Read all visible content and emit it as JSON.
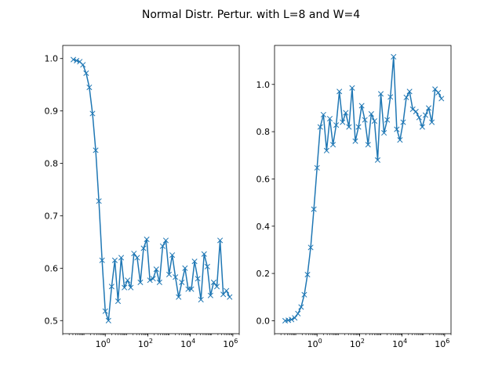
{
  "chart_data": {
    "title": "Normal Distr. Pertur. with L=8 and W=4",
    "line_color": "#1f77b4",
    "axes_color": "#000000",
    "background": "#ffffff",
    "panels": [
      {
        "type": "line",
        "marker": "x",
        "xscale": "log",
        "xlim": [
          0.01,
          2000000
        ],
        "ylim": [
          0.475,
          1.025
        ],
        "xticks": [
          {
            "value": 1,
            "base": "10",
            "exp": "0"
          },
          {
            "value": 100,
            "base": "10",
            "exp": "2"
          },
          {
            "value": 10000,
            "base": "10",
            "exp": "4"
          },
          {
            "value": 1000000,
            "base": "10",
            "exp": "6"
          }
        ],
        "yticks": [
          {
            "value": 0.5,
            "label": "0.5"
          },
          {
            "value": 0.6,
            "label": "0.6"
          },
          {
            "value": 0.7,
            "label": "0.7"
          },
          {
            "value": 0.8,
            "label": "0.8"
          },
          {
            "value": 0.9,
            "label": "0.9"
          },
          {
            "value": 1.0,
            "label": "1.0"
          }
        ],
        "x": [
          0.0316,
          0.0447,
          0.0631,
          0.0891,
          0.1259,
          0.1778,
          0.2512,
          0.3548,
          0.5012,
          0.7079,
          1.0,
          1.4125,
          1.9953,
          2.8184,
          3.9811,
          5.6234,
          7.9433,
          11.22,
          15.85,
          22.39,
          31.62,
          44.67,
          63.1,
          89.13,
          125.9,
          177.8,
          251.2,
          354.8,
          501.2,
          707.9,
          1000,
          1413,
          1995,
          2818,
          3981,
          5623,
          7943,
          11220,
          15850,
          22390,
          31620,
          44670,
          63100,
          89130,
          125900,
          177800,
          251200,
          354800,
          501200,
          707900
        ],
        "y": [
          0.998,
          0.996,
          0.994,
          0.988,
          0.972,
          0.945,
          0.895,
          0.825,
          0.728,
          0.615,
          0.518,
          0.5,
          0.565,
          0.615,
          0.537,
          0.62,
          0.563,
          0.577,
          0.563,
          0.628,
          0.62,
          0.573,
          0.638,
          0.655,
          0.577,
          0.58,
          0.598,
          0.573,
          0.642,
          0.653,
          0.588,
          0.625,
          0.583,
          0.545,
          0.573,
          0.6,
          0.56,
          0.56,
          0.613,
          0.58,
          0.54,
          0.627,
          0.603,
          0.548,
          0.573,
          0.565,
          0.653,
          0.55,
          0.557,
          0.545
        ]
      },
      {
        "type": "line",
        "marker": "x",
        "xscale": "log",
        "xlim": [
          0.01,
          2000000
        ],
        "ylim": [
          -0.055,
          1.165
        ],
        "xticks": [
          {
            "value": 1,
            "base": "10",
            "exp": "0"
          },
          {
            "value": 100,
            "base": "10",
            "exp": "2"
          },
          {
            "value": 10000,
            "base": "10",
            "exp": "4"
          },
          {
            "value": 1000000,
            "base": "10",
            "exp": "6"
          }
        ],
        "yticks": [
          {
            "value": 0.0,
            "label": "0.0"
          },
          {
            "value": 0.2,
            "label": "0.2"
          },
          {
            "value": 0.4,
            "label": "0.4"
          },
          {
            "value": 0.6,
            "label": "0.6"
          },
          {
            "value": 0.8,
            "label": "0.8"
          },
          {
            "value": 1.0,
            "label": "1.0"
          }
        ],
        "x": [
          0.0316,
          0.0447,
          0.0631,
          0.0891,
          0.1259,
          0.1778,
          0.2512,
          0.3548,
          0.5012,
          0.7079,
          1.0,
          1.4125,
          1.9953,
          2.8184,
          3.9811,
          5.6234,
          7.9433,
          11.22,
          15.85,
          22.39,
          31.62,
          44.67,
          63.1,
          89.13,
          125.9,
          177.8,
          251.2,
          354.8,
          501.2,
          707.9,
          1000,
          1413,
          1995,
          2818,
          3981,
          5623,
          7943,
          11220,
          15850,
          22390,
          31620,
          44670,
          63100,
          89130,
          125900,
          177800,
          251200,
          354800,
          501200,
          707900
        ],
        "y": [
          0.0,
          0.002,
          0.005,
          0.012,
          0.03,
          0.058,
          0.11,
          0.195,
          0.31,
          0.472,
          0.647,
          0.82,
          0.872,
          0.72,
          0.855,
          0.745,
          0.828,
          0.97,
          0.84,
          0.88,
          0.82,
          0.985,
          0.76,
          0.82,
          0.91,
          0.85,
          0.745,
          0.875,
          0.845,
          0.68,
          0.96,
          0.795,
          0.85,
          0.947,
          1.117,
          0.81,
          0.765,
          0.84,
          0.945,
          0.97,
          0.895,
          0.885,
          0.86,
          0.82,
          0.87,
          0.9,
          0.84,
          0.98,
          0.965,
          0.94
        ]
      }
    ]
  }
}
